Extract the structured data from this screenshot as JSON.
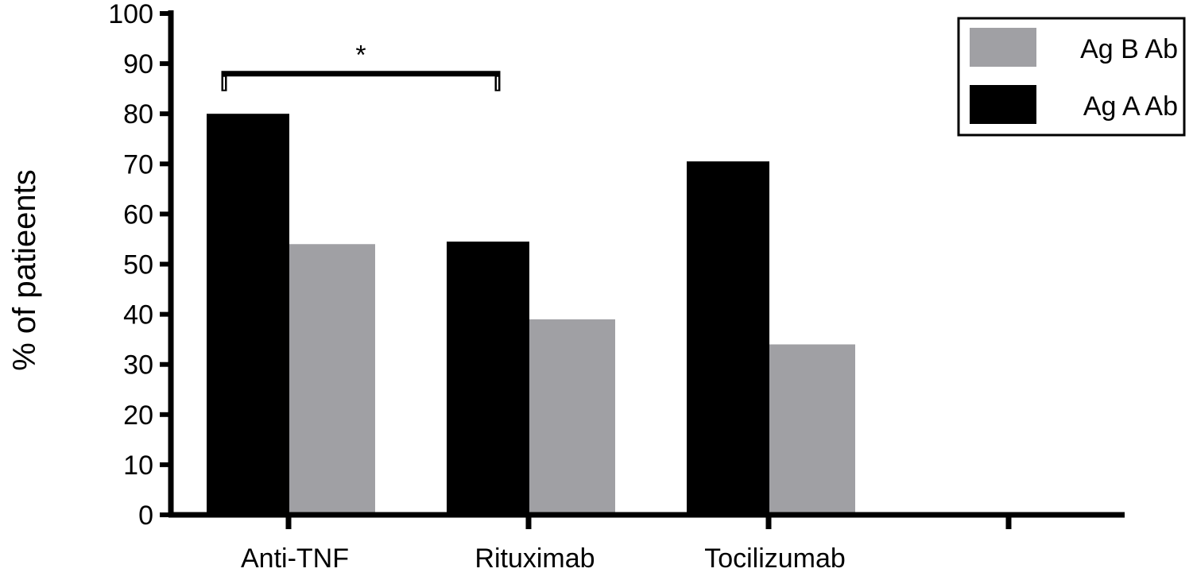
{
  "chart_data": {
    "type": "bar",
    "title": "",
    "xlabel": "",
    "ylabel": "% of patieents",
    "ylim": [
      0,
      100
    ],
    "yticks": [
      "0",
      "10",
      "20",
      "30",
      "40",
      "50",
      "60",
      "70",
      "80",
      "90",
      "100"
    ],
    "categories": [
      "Anti-TNF",
      "Rituximab",
      "Tocilizumab",
      ""
    ],
    "series": [
      {
        "name": "Ag A Ab",
        "color": "#000000",
        "values": [
          80,
          54.5,
          70.5,
          null
        ]
      },
      {
        "name": "Ag B Ab",
        "color": "#a0a0a4",
        "values": [
          54,
          39,
          34,
          null
        ]
      }
    ],
    "legend": {
      "position": "top-right",
      "entries": [
        {
          "label": "Ag B Ab",
          "color": "#a0a0a4"
        },
        {
          "label": "Ag A Ab",
          "color": "#000000"
        }
      ]
    },
    "annotations": [
      {
        "type": "significance-bracket",
        "text": "*",
        "from_category": "Anti-TNF",
        "to_category": "Rituximab",
        "y": 88
      }
    ],
    "grid": false
  }
}
